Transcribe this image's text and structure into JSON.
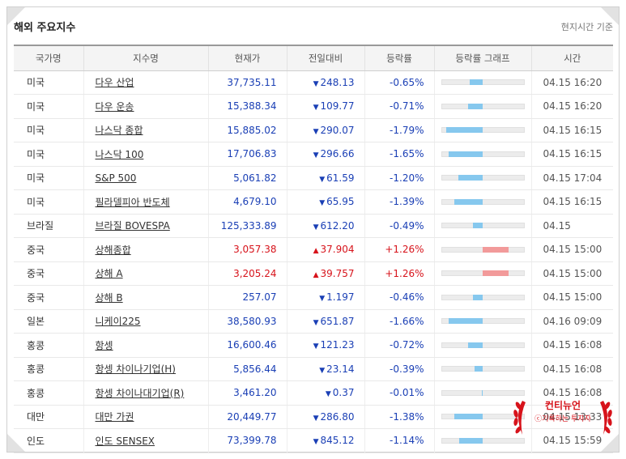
{
  "header": {
    "title": "해외 주요지수",
    "basis": "현지시간 기준"
  },
  "columns": [
    "국가명",
    "지수명",
    "현재가",
    "전일대비",
    "등락률",
    "등락률 그래프",
    "시간"
  ],
  "rows": [
    {
      "country": "미국",
      "name": "다우 산업",
      "price": "37,735.11",
      "arrow": "▼",
      "change": "248.13",
      "rate": "-0.65%",
      "dir": "down",
      "pct": -0.65,
      "time": "04.15 16:20"
    },
    {
      "country": "미국",
      "name": "다우 운송",
      "price": "15,388.34",
      "arrow": "▼",
      "change": "109.77",
      "rate": "-0.71%",
      "dir": "down",
      "pct": -0.71,
      "time": "04.15 16:20"
    },
    {
      "country": "미국",
      "name": "나스닥 종합",
      "price": "15,885.02",
      "arrow": "▼",
      "change": "290.07",
      "rate": "-1.79%",
      "dir": "down",
      "pct": -1.79,
      "time": "04.15 16:15"
    },
    {
      "country": "미국",
      "name": "나스닥 100",
      "price": "17,706.83",
      "arrow": "▼",
      "change": "296.66",
      "rate": "-1.65%",
      "dir": "down",
      "pct": -1.65,
      "time": "04.15 16:15"
    },
    {
      "country": "미국",
      "name": "S&P 500",
      "price": "5,061.82",
      "arrow": "▼",
      "change": "61.59",
      "rate": "-1.20%",
      "dir": "down",
      "pct": -1.2,
      "time": "04.15 17:04"
    },
    {
      "country": "미국",
      "name": "필라델피아 반도체",
      "price": "4,679.10",
      "arrow": "▼",
      "change": "65.95",
      "rate": "-1.39%",
      "dir": "down",
      "pct": -1.39,
      "time": "04.15 16:15"
    },
    {
      "country": "브라질",
      "name": "브라질 BOVESPA",
      "price": "125,333.89",
      "arrow": "▼",
      "change": "612.20",
      "rate": "-0.49%",
      "dir": "down",
      "pct": -0.49,
      "time": "04.15"
    },
    {
      "country": "중국",
      "name": "상해종합",
      "price": "3,057.38",
      "arrow": "▲",
      "change": "37.904",
      "rate": "+1.26%",
      "dir": "up",
      "pct": 1.26,
      "time": "04.15 15:00"
    },
    {
      "country": "중국",
      "name": "상해 A",
      "price": "3,205.24",
      "arrow": "▲",
      "change": "39.757",
      "rate": "+1.26%",
      "dir": "up",
      "pct": 1.26,
      "time": "04.15 15:00"
    },
    {
      "country": "중국",
      "name": "상해 B",
      "price": "257.07",
      "arrow": "▼",
      "change": "1.197",
      "rate": "-0.46%",
      "dir": "down",
      "pct": -0.46,
      "time": "04.15 15:00"
    },
    {
      "country": "일본",
      "name": "니케이225",
      "price": "38,580.93",
      "arrow": "▼",
      "change": "651.87",
      "rate": "-1.66%",
      "dir": "down",
      "pct": -1.66,
      "time": "04.16 09:09"
    },
    {
      "country": "홍콩",
      "name": "항셍",
      "price": "16,600.46",
      "arrow": "▼",
      "change": "121.23",
      "rate": "-0.72%",
      "dir": "down",
      "pct": -0.72,
      "time": "04.15 16:08"
    },
    {
      "country": "홍콩",
      "name": "항셍 차이나기업(H)",
      "price": "5,856.44",
      "arrow": "▼",
      "change": "23.14",
      "rate": "-0.39%",
      "dir": "down",
      "pct": -0.39,
      "time": "04.15 16:08"
    },
    {
      "country": "홍콩",
      "name": "항셍 차이나대기업(R)",
      "price": "3,461.20",
      "arrow": "▼",
      "change": "0.37",
      "rate": "-0.01%",
      "dir": "down",
      "pct": -0.01,
      "time": "04.15 16:08"
    },
    {
      "country": "대만",
      "name": "대만 가권",
      "price": "20,449.77",
      "arrow": "▼",
      "change": "286.80",
      "rate": "-1.38%",
      "dir": "down",
      "pct": -1.38,
      "time": "04.15 13:33"
    },
    {
      "country": "인도",
      "name": "인도 SENSEX",
      "price": "73,399.78",
      "arrow": "▼",
      "change": "845.12",
      "rate": "-1.14%",
      "dir": "down",
      "pct": -1.14,
      "time": "04.15 15:59"
    }
  ],
  "watermark": {
    "title": "컨티뉴언",
    "subtitle": "ⓒ기록하는 투자자"
  },
  "colors": {
    "down": "#1a3fb5",
    "up": "#d7131b",
    "bar_down": "#86c8ee",
    "bar_up": "#f29a9a"
  }
}
